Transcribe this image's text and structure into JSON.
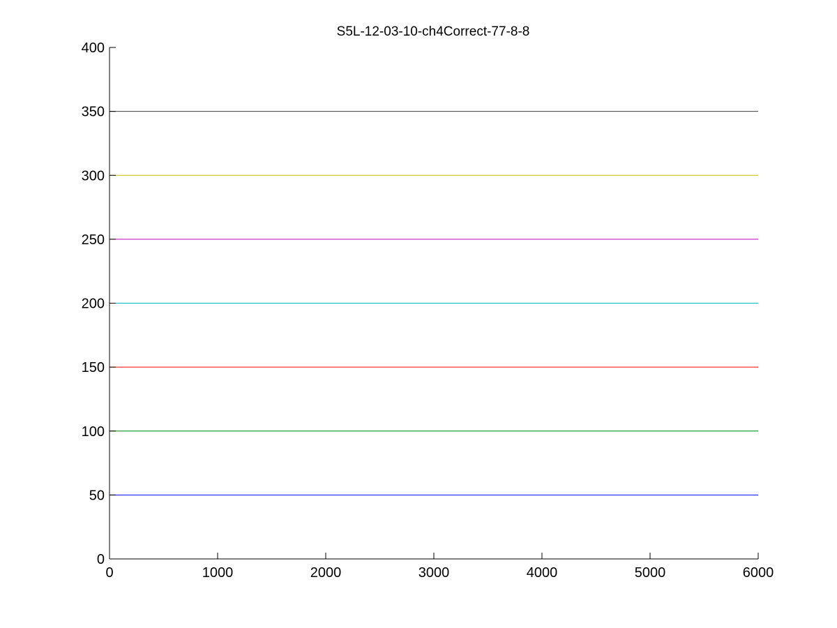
{
  "chart_data": {
    "type": "line",
    "title": "S5L-12-03-10-ch4Correct-77-8-8",
    "xlabel": "",
    "ylabel": "",
    "xlim": [
      0,
      6000
    ],
    "ylim": [
      0,
      400
    ],
    "xticks": [
      0,
      1000,
      2000,
      3000,
      4000,
      5000,
      6000
    ],
    "yticks": [
      0,
      50,
      100,
      150,
      200,
      250,
      300,
      350,
      400
    ],
    "grid": false,
    "legend": "none",
    "series": [
      {
        "x": [
          0,
          6000
        ],
        "y": [
          50,
          50
        ],
        "color": "#0000ff"
      },
      {
        "x": [
          0,
          6000
        ],
        "y": [
          100,
          100
        ],
        "color": "#008000"
      },
      {
        "x": [
          0,
          6000
        ],
        "y": [
          150,
          150
        ],
        "color": "#ff0000"
      },
      {
        "x": [
          0,
          6000
        ],
        "y": [
          200,
          200
        ],
        "color": "#00bfbf"
      },
      {
        "x": [
          0,
          6000
        ],
        "y": [
          250,
          250
        ],
        "color": "#bf00bf"
      },
      {
        "x": [
          0,
          6000
        ],
        "y": [
          300,
          300
        ],
        "color": "#bfbf00"
      },
      {
        "x": [
          0,
          6000
        ],
        "y": [
          350,
          350
        ],
        "color": "#404040"
      }
    ]
  }
}
